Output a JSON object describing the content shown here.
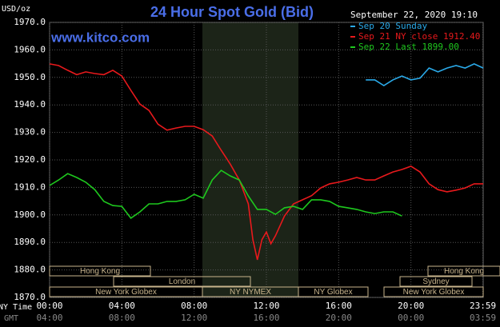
{
  "chart_data": {
    "type": "line",
    "title": "24 Hour Spot Gold (Bid)",
    "watermark": "www.kitco.com",
    "timestamp": "September 22, 2020 19:10",
    "y_label": "USD/oz",
    "x_label": "NY Time",
    "x2_label": "GMT",
    "xlim": [
      0,
      24
    ],
    "xticks": [
      {
        "value": 0,
        "label": "00:00"
      },
      {
        "value": 4,
        "label": "04:00"
      },
      {
        "value": 8,
        "label": "08:00"
      },
      {
        "value": 12,
        "label": "12:00"
      },
      {
        "value": 16,
        "label": "16:00"
      },
      {
        "value": 20,
        "label": "20:00"
      },
      {
        "value": 23.98,
        "label": "23:59"
      }
    ],
    "gmt_labels": [
      "04:00",
      "08:00",
      "12:00",
      "16:00",
      "20:00",
      "00:00",
      "03:59"
    ],
    "ylim": [
      1870,
      1970
    ],
    "yticks": [
      {
        "value": 1870,
        "label": "1870.0"
      },
      {
        "value": 1880,
        "label": "1880.0"
      },
      {
        "value": 1890,
        "label": "1890.0"
      },
      {
        "value": 1900,
        "label": "1900.0"
      },
      {
        "value": 1910,
        "label": "1910.0"
      },
      {
        "value": 1920,
        "label": "1920.0"
      },
      {
        "value": 1930,
        "label": "1930.0"
      },
      {
        "value": 1940,
        "label": "1940.0"
      },
      {
        "value": 1950,
        "label": "1950.0"
      },
      {
        "value": 1960,
        "label": "1960.0"
      },
      {
        "value": 1970,
        "label": "1970.0"
      }
    ],
    "grid": true,
    "sessions": [
      "Hong Kong",
      "Hong Kong",
      "London",
      "Sydney",
      "New York Globex",
      "NY NYMEX",
      "NY Globex",
      "New York Globex"
    ],
    "series": [
      {
        "name": "Sep 20 Sunday",
        "color": "#2aa9e8",
        "x": [
          17.5,
          18,
          18.5,
          19,
          19.5,
          20,
          20.5,
          21,
          21.5,
          22,
          22.5,
          23,
          23.5,
          24
        ],
        "values": [
          1949.1,
          1949.1,
          1947,
          1949.1,
          1950.5,
          1949.1,
          1949.7,
          1953.4,
          1952,
          1953.4,
          1954.3,
          1953.4,
          1954.9,
          1953.4
        ]
      },
      {
        "name": "Sep 21 NY close 1912.40",
        "color": "#e8191c",
        "x": [
          0,
          0.5,
          1,
          1.5,
          2,
          2.5,
          3,
          3.5,
          4,
          4.5,
          5,
          5.5,
          6,
          6.5,
          7,
          7.5,
          8,
          8.5,
          9,
          9.5,
          10,
          10.5,
          11,
          11.25,
          11.5,
          11.75,
          12,
          12.25,
          12.5,
          13,
          13.5,
          14,
          14.5,
          15,
          15.5,
          16,
          16.5,
          17,
          17.5,
          18,
          18.5,
          19,
          19.5,
          20,
          20.5,
          21,
          21.5,
          22,
          22.5,
          23,
          23.5,
          24
        ],
        "values": [
          1954.9,
          1954.3,
          1952.6,
          1951,
          1952,
          1951.4,
          1951,
          1952.6,
          1950.5,
          1945.3,
          1940.3,
          1938,
          1933,
          1930.8,
          1931.6,
          1932.2,
          1932.2,
          1931,
          1928.7,
          1923.5,
          1918.5,
          1912.7,
          1904,
          1891,
          1883.7,
          1891,
          1893.8,
          1889.5,
          1892.4,
          1899.6,
          1904,
          1905.5,
          1907,
          1909.8,
          1911.3,
          1911.9,
          1912.7,
          1913.6,
          1912.7,
          1912.7,
          1914.2,
          1915.6,
          1916.5,
          1917.7,
          1915.6,
          1911.3,
          1909.2,
          1908.4,
          1909,
          1909.8,
          1911.3,
          1911.3
        ]
      },
      {
        "name": "Sep 22 Last 1899.00",
        "color": "#1ec81e",
        "x": [
          0,
          0.5,
          1,
          1.5,
          2,
          2.5,
          3,
          3.5,
          4,
          4.5,
          5,
          5.5,
          6,
          6.5,
          7,
          7.5,
          8,
          8.5,
          9,
          9.5,
          10,
          10.5,
          11,
          11.5,
          12,
          12.5,
          13,
          13.5,
          14,
          14.5,
          15,
          15.5,
          16,
          16.5,
          17,
          17.5,
          18,
          18.5,
          19,
          19.5
        ],
        "values": [
          1910.7,
          1912.7,
          1915,
          1913.6,
          1911.9,
          1909.2,
          1904.9,
          1903.4,
          1903.1,
          1898.8,
          1901.1,
          1904,
          1904,
          1904.9,
          1904.9,
          1905.5,
          1907.5,
          1906.1,
          1912.7,
          1916.2,
          1914.2,
          1912.7,
          1906.9,
          1902,
          1902,
          1900.2,
          1902.6,
          1903.1,
          1902,
          1905.5,
          1905.5,
          1904.9,
          1903.1,
          1902.6,
          1902,
          1901.1,
          1900.5,
          1901.1,
          1901.1,
          1899.6
        ]
      }
    ]
  }
}
